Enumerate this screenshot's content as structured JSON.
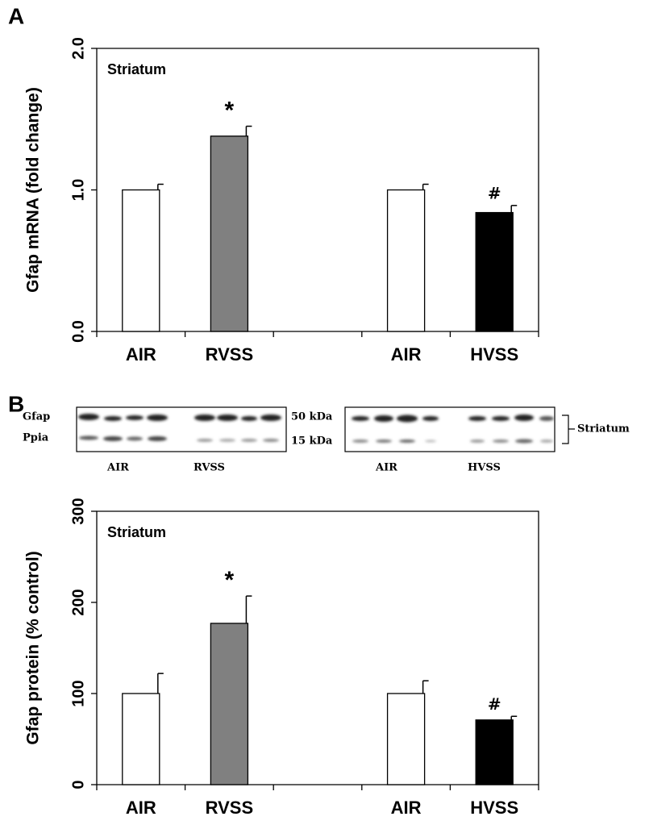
{
  "panel_labels": [
    "A",
    "B"
  ],
  "blot": {
    "rows": [
      "Gfap",
      "Ppia"
    ],
    "sizes": [
      "50 kDa",
      "15 kDa"
    ],
    "groups": [
      "AIR",
      "RVSS",
      "AIR",
      "HVSS"
    ],
    "region": "Striatum"
  },
  "chart_data": [
    {
      "type": "bar",
      "inner_label": "Striatum",
      "y_label": "Gfap mRNA (fold change)",
      "categories": [
        "AIR",
        "RVSS",
        null,
        "AIR",
        "HVSS"
      ],
      "values": [
        1.0,
        1.38,
        null,
        1.0,
        0.84
      ],
      "errors": [
        0.04,
        0.07,
        null,
        0.04,
        0.05
      ],
      "colors": [
        "#ffffff",
        "#808080",
        null,
        "#ffffff",
        "#000000"
      ],
      "markers": [
        null,
        "*",
        null,
        null,
        "#"
      ],
      "ylim": [
        0,
        2
      ],
      "yticks": [
        {
          "value": 0,
          "label": "0.0"
        },
        {
          "value": 1,
          "label": "1.0"
        },
        {
          "value": 2,
          "label": "2.0"
        }
      ]
    },
    {
      "type": "bar",
      "inner_label": "Striatum",
      "y_label": "Gfap protein (% control)",
      "categories": [
        "AIR",
        "RVSS",
        null,
        "AIR",
        "HVSS"
      ],
      "values": [
        100,
        177,
        null,
        100,
        71
      ],
      "errors": [
        22,
        30,
        null,
        14,
        4
      ],
      "colors": [
        "#ffffff",
        "#808080",
        null,
        "#ffffff",
        "#000000"
      ],
      "markers": [
        null,
        "*",
        null,
        null,
        "#"
      ],
      "ylim": [
        0,
        300
      ],
      "yticks": [
        0,
        100,
        200,
        300
      ]
    }
  ]
}
